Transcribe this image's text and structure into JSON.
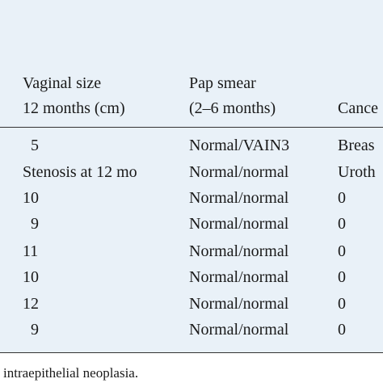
{
  "table": {
    "header": [
      [
        "Vaginal size",
        "Pap smear",
        ""
      ],
      [
        "12 months (cm)",
        "(2–6 months)",
        "Cance"
      ]
    ],
    "rows": [
      [
        "5",
        "Normal/VAIN3",
        "Breas"
      ],
      [
        "Stenosis at 12 mo",
        "Normal/normal",
        "Uroth"
      ],
      [
        "10",
        "Normal/normal",
        "0"
      ],
      [
        "9",
        "Normal/normal",
        "0"
      ],
      [
        "11",
        "Normal/normal",
        "0"
      ],
      [
        "10",
        "Normal/normal",
        "0"
      ],
      [
        "12",
        "Normal/normal",
        "0"
      ],
      [
        "9",
        "Normal/normal",
        "0"
      ]
    ]
  },
  "footnote": "intraepithelial neoplasia."
}
